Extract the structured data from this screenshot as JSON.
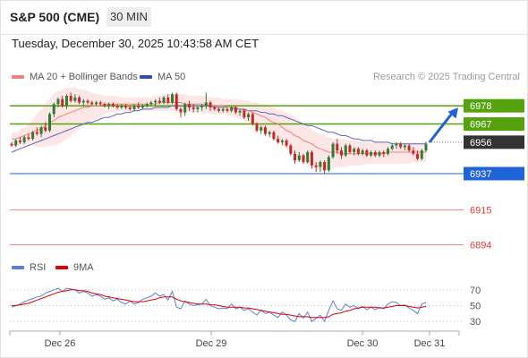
{
  "header": {
    "title": "S&P 500 (CME)",
    "timeframe": "30 MIN"
  },
  "timestamp": "Tuesday, December 30, 2025 10:43:58 AM CET",
  "legend": {
    "ma20_label": "MA 20 + Bollinger Bands",
    "ma50_label": "MA 50",
    "rsi_label": "RSI",
    "nine_ma_label": "9MA",
    "credit": "Research © 2025 Trading Central"
  },
  "colors": {
    "up": "#2e7d32",
    "down": "#c62828",
    "ma20": "#f08080",
    "ma50": "#5b6abf",
    "band_fill": "#fde2e2",
    "resistance": "#55a10e",
    "support": "#1f63d6",
    "lower": "#e53935",
    "current": "#333333",
    "arrow": "#1f63d6"
  },
  "chart_data": [
    {
      "type": "candlestick",
      "x_ticks": [
        "Dec 26",
        "Dec 29",
        "Dec 30",
        "Dec 31"
      ],
      "ylim": [
        6884,
        6990
      ],
      "grid": false,
      "levels": [
        {
          "value": 6978,
          "label": "6978",
          "kind": "resistance"
        },
        {
          "value": 6967,
          "label": "6967",
          "kind": "resistance"
        },
        {
          "value": 6956,
          "label": "6956",
          "kind": "current"
        },
        {
          "value": 6937,
          "label": "6937",
          "kind": "support"
        },
        {
          "value": 6915,
          "label": "6915",
          "kind": "lower"
        },
        {
          "value": 6894,
          "label": "6894",
          "kind": "lower"
        }
      ],
      "candles": [
        [
          6955,
          6956,
          6953,
          6954
        ],
        [
          6954,
          6958,
          6953,
          6957
        ],
        [
          6957,
          6959,
          6955,
          6956
        ],
        [
          6956,
          6960,
          6955,
          6959
        ],
        [
          6959,
          6961,
          6957,
          6958
        ],
        [
          6958,
          6963,
          6957,
          6962
        ],
        [
          6962,
          6965,
          6960,
          6961
        ],
        [
          6961,
          6966,
          6959,
          6965
        ],
        [
          6965,
          6968,
          6962,
          6963
        ],
        [
          6963,
          6974,
          6962,
          6973
        ],
        [
          6973,
          6980,
          6971,
          6979
        ],
        [
          6979,
          6983,
          6977,
          6982
        ],
        [
          6982,
          6984,
          6977,
          6978
        ],
        [
          6978,
          6985,
          6976,
          6984
        ],
        [
          6984,
          6986,
          6980,
          6981
        ],
        [
          6981,
          6985,
          6980,
          6983
        ],
        [
          6983,
          6984,
          6979,
          6980
        ],
        [
          6980,
          6982,
          6978,
          6981
        ],
        [
          6981,
          6982,
          6979,
          6980
        ],
        [
          6980,
          6981,
          6978,
          6979
        ],
        [
          6979,
          6981,
          6978,
          6980
        ],
        [
          6980,
          6981,
          6978,
          6979
        ],
        [
          6979,
          6980,
          6977,
          6978
        ],
        [
          6978,
          6980,
          6976,
          6979
        ],
        [
          6979,
          6980,
          6977,
          6978
        ],
        [
          6978,
          6979,
          6976,
          6977
        ],
        [
          6977,
          6979,
          6976,
          6978
        ],
        [
          6978,
          6979,
          6976,
          6977
        ],
        [
          6977,
          6978,
          6975,
          6976
        ],
        [
          6976,
          6979,
          6975,
          6978
        ],
        [
          6978,
          6980,
          6976,
          6977
        ],
        [
          6977,
          6979,
          6976,
          6978
        ],
        [
          6978,
          6980,
          6977,
          6979
        ],
        [
          6979,
          6981,
          6978,
          6980
        ],
        [
          6980,
          6982,
          6978,
          6981
        ],
        [
          6981,
          6983,
          6979,
          6980
        ],
        [
          6980,
          6984,
          6979,
          6983
        ],
        [
          6983,
          6985,
          6979,
          6980
        ],
        [
          6980,
          6986,
          6979,
          6985
        ],
        [
          6985,
          6986,
          6975,
          6976
        ],
        [
          6976,
          6977,
          6971,
          6974
        ],
        [
          6974,
          6980,
          6972,
          6979
        ],
        [
          6979,
          6981,
          6975,
          6977
        ],
        [
          6977,
          6979,
          6974,
          6976
        ],
        [
          6976,
          6978,
          6974,
          6977
        ],
        [
          6977,
          6979,
          6975,
          6978
        ],
        [
          6978,
          6986,
          6976,
          6980
        ],
        [
          6980,
          6981,
          6975,
          6977
        ],
        [
          6977,
          6978,
          6975,
          6976
        ],
        [
          6976,
          6977,
          6974,
          6975
        ],
        [
          6975,
          6977,
          6974,
          6976
        ],
        [
          6976,
          6977,
          6974,
          6975
        ],
        [
          6975,
          6978,
          6974,
          6977
        ],
        [
          6977,
          6978,
          6973,
          6974
        ],
        [
          6974,
          6976,
          6972,
          6975
        ],
        [
          6975,
          6976,
          6970,
          6971
        ],
        [
          6971,
          6974,
          6969,
          6973
        ],
        [
          6973,
          6974,
          6966,
          6967
        ],
        [
          6967,
          6968,
          6962,
          6963
        ],
        [
          6963,
          6966,
          6961,
          6965
        ],
        [
          6965,
          6966,
          6960,
          6961
        ],
        [
          6961,
          6963,
          6959,
          6962
        ],
        [
          6962,
          6963,
          6957,
          6958
        ],
        [
          6958,
          6960,
          6955,
          6956
        ],
        [
          6956,
          6958,
          6954,
          6957
        ],
        [
          6957,
          6958,
          6953,
          6954
        ],
        [
          6954,
          6955,
          6948,
          6949
        ],
        [
          6949,
          6951,
          6943,
          6945
        ],
        [
          6945,
          6950,
          6944,
          6948
        ],
        [
          6948,
          6949,
          6943,
          6944
        ],
        [
          6944,
          6951,
          6943,
          6950
        ],
        [
          6950,
          6951,
          6940,
          6942
        ],
        [
          6942,
          6944,
          6938,
          6941
        ],
        [
          6941,
          6945,
          6938,
          6944
        ],
        [
          6944,
          6945,
          6937,
          6939
        ],
        [
          6939,
          6948,
          6938,
          6947
        ],
        [
          6947,
          6956,
          6946,
          6955
        ],
        [
          6955,
          6958,
          6949,
          6951
        ],
        [
          6951,
          6953,
          6946,
          6948
        ],
        [
          6948,
          6955,
          6947,
          6954
        ],
        [
          6954,
          6955,
          6949,
          6950
        ],
        [
          6950,
          6953,
          6948,
          6952
        ],
        [
          6952,
          6953,
          6948,
          6949
        ],
        [
          6949,
          6952,
          6948,
          6951
        ],
        [
          6951,
          6952,
          6947,
          6948
        ],
        [
          6948,
          6951,
          6947,
          6950
        ],
        [
          6950,
          6951,
          6947,
          6948
        ],
        [
          6948,
          6951,
          6947,
          6950
        ],
        [
          6950,
          6951,
          6947,
          6949
        ],
        [
          6949,
          6953,
          6948,
          6952
        ],
        [
          6952,
          6955,
          6951,
          6954
        ],
        [
          6954,
          6956,
          6952,
          6955
        ],
        [
          6955,
          6956,
          6952,
          6953
        ],
        [
          6953,
          6955,
          6951,
          6954
        ],
        [
          6954,
          6955,
          6950,
          6951
        ],
        [
          6951,
          6953,
          6948,
          6949
        ],
        [
          6949,
          6951,
          6945,
          6946
        ],
        [
          6946,
          6952,
          6945,
          6951
        ],
        [
          6951,
          6956,
          6950,
          6955
        ]
      ],
      "ma20": [
        6958,
        6958,
        6959,
        6960,
        6961,
        6962,
        6963,
        6964,
        6966,
        6968,
        6969,
        6971,
        6972,
        6973,
        6974,
        6975,
        6976,
        6977,
        6977,
        6978,
        6978,
        6978,
        6979,
        6979,
        6979,
        6979,
        6979,
        6979,
        6979,
        6979,
        6979,
        6979,
        6979,
        6979,
        6979,
        6980,
        6980,
        6980,
        6980,
        6980,
        6980,
        6979,
        6979,
        6979,
        6979,
        6979,
        6979,
        6978,
        6978,
        6978,
        6978,
        6977,
        6977,
        6977,
        6976,
        6975,
        6975,
        6974,
        6973,
        6972,
        6971,
        6969,
        6968,
        6967,
        6965,
        6963,
        6962,
        6960,
        6959,
        6957,
        6956,
        6955,
        6953,
        6952,
        6951,
        6950,
        6950,
        6950,
        6949,
        6949,
        6949,
        6949,
        6949,
        6949,
        6949,
        6949,
        6949,
        6949,
        6949,
        6950,
        6950,
        6950,
        6950,
        6950,
        6950,
        6950,
        6950,
        6950,
        6950
      ],
      "bb_upper": [
        6962,
        6962,
        6963,
        6965,
        6967,
        6970,
        6973,
        6976,
        6979,
        6982,
        6985,
        6987,
        6988,
        6989,
        6989,
        6989,
        6988,
        6988,
        6987,
        6986,
        6985,
        6985,
        6984,
        6984,
        6984,
        6984,
        6983,
        6983,
        6983,
        6983,
        6983,
        6983,
        6983,
        6983,
        6984,
        6984,
        6985,
        6985,
        6985,
        6985,
        6985,
        6985,
        6984,
        6984,
        6984,
        6984,
        6984,
        6983,
        6983,
        6983,
        6982,
        6982,
        6982,
        6982,
        6982,
        6981,
        6981,
        6980,
        6980,
        6979,
        6979,
        6978,
        6977,
        6976,
        6975,
        6974,
        6973,
        6971,
        6969,
        6967,
        6965,
        6964,
        6962,
        6961,
        6960,
        6959,
        6958,
        6958,
        6958,
        6958,
        6957,
        6957,
        6957,
        6956,
        6956,
        6956,
        6956,
        6956,
        6956,
        6956,
        6956,
        6956,
        6956,
        6956,
        6956,
        6956,
        6956,
        6956,
        6956
      ],
      "bb_lower": [
        6954,
        6954,
        6954,
        6954,
        6954,
        6954,
        6953,
        6953,
        6953,
        6954,
        6954,
        6955,
        6956,
        6958,
        6960,
        6962,
        6964,
        6966,
        6967,
        6969,
        6970,
        6971,
        6973,
        6974,
        6974,
        6974,
        6975,
        6975,
        6975,
        6975,
        6975,
        6975,
        6975,
        6975,
        6975,
        6975,
        6975,
        6975,
        6975,
        6975,
        6975,
        6974,
        6974,
        6974,
        6974,
        6974,
        6974,
        6973,
        6973,
        6973,
        6973,
        6972,
        6972,
        6971,
        6970,
        6969,
        6968,
        6967,
        6965,
        6964,
        6962,
        6960,
        6958,
        6957,
        6955,
        6952,
        6950,
        6948,
        6946,
        6944,
        6942,
        6941,
        6940,
        6939,
        6939,
        6939,
        6940,
        6941,
        6941,
        6941,
        6942,
        6942,
        6942,
        6942,
        6943,
        6943,
        6943,
        6943,
        6943,
        6943,
        6943,
        6943,
        6943,
        6943,
        6943,
        6944,
        6944,
        6944,
        6944
      ],
      "ma50": [
        6950,
        6951,
        6952,
        6953,
        6954,
        6955,
        6956,
        6957,
        6958,
        6959,
        6960,
        6961,
        6962,
        6963,
        6964,
        6965,
        6966,
        6967,
        6968,
        6968,
        6969,
        6970,
        6971,
        6971,
        6972,
        6973,
        6973,
        6974,
        6974,
        6975,
        6975,
        6976,
        6976,
        6976,
        6977,
        6977,
        6977,
        6977,
        6978,
        6978,
        6978,
        6978,
        6978,
        6978,
        6978,
        6978,
        6978,
        6978,
        6977,
        6977,
        6977,
        6977,
        6977,
        6976,
        6976,
        6976,
        6975,
        6975,
        6975,
        6974,
        6974,
        6973,
        6973,
        6972,
        6972,
        6971,
        6970,
        6969,
        6968,
        6967,
        6966,
        6966,
        6965,
        6964,
        6963,
        6962,
        6962,
        6961,
        6960,
        6960,
        6959,
        6958,
        6958,
        6957,
        6957,
        6957,
        6956,
        6956,
        6956,
        6956,
        6955,
        6955,
        6955,
        6955,
        6955,
        6955,
        6955,
        6955,
        6955
      ],
      "forecast_arrow": {
        "from": 6956,
        "to": 6978
      }
    },
    {
      "type": "line",
      "title": "RSI",
      "ylim": [
        20,
        80
      ],
      "y_ticks": [
        70,
        50,
        30
      ],
      "series": [
        {
          "name": "RSI",
          "values": [
            48,
            50,
            52,
            55,
            57,
            59,
            61,
            62,
            66,
            68,
            70,
            72,
            68,
            72,
            71,
            70,
            66,
            68,
            66,
            62,
            64,
            62,
            58,
            60,
            56,
            58,
            54,
            52,
            56,
            52,
            54,
            58,
            60,
            62,
            66,
            62,
            64,
            57,
            68,
            48,
            46,
            56,
            52,
            50,
            51,
            52,
            58,
            50,
            48,
            46,
            47,
            46,
            52,
            46,
            48,
            44,
            46,
            42,
            38,
            44,
            40,
            42,
            38,
            35,
            42,
            38,
            32,
            30,
            40,
            34,
            42,
            30,
            34,
            38,
            30,
            44,
            56,
            46,
            44,
            52,
            48,
            50,
            46,
            49,
            45,
            48,
            45,
            48,
            46,
            52,
            55,
            54,
            50,
            51,
            47,
            44,
            40,
            52,
            54
          ]
        },
        {
          "name": "9MA",
          "values": [
            50,
            50,
            51,
            52,
            53,
            55,
            57,
            59,
            61,
            63,
            65,
            67,
            68,
            69,
            70,
            70,
            69,
            69,
            68,
            66,
            65,
            64,
            62,
            61,
            60,
            59,
            58,
            57,
            56,
            55,
            55,
            55,
            56,
            57,
            58,
            60,
            61,
            61,
            61,
            58,
            56,
            55,
            54,
            53,
            52,
            52,
            52,
            51,
            51,
            50,
            49,
            48,
            48,
            48,
            48,
            47,
            47,
            46,
            45,
            44,
            43,
            42,
            41,
            40,
            39,
            39,
            38,
            37,
            36,
            36,
            36,
            35,
            35,
            35,
            35,
            36,
            39,
            40,
            41,
            43,
            44,
            46,
            47,
            48,
            48,
            48,
            48,
            47,
            47,
            48,
            49,
            50,
            50,
            50,
            49,
            48,
            47,
            48,
            49
          ]
        }
      ]
    }
  ]
}
